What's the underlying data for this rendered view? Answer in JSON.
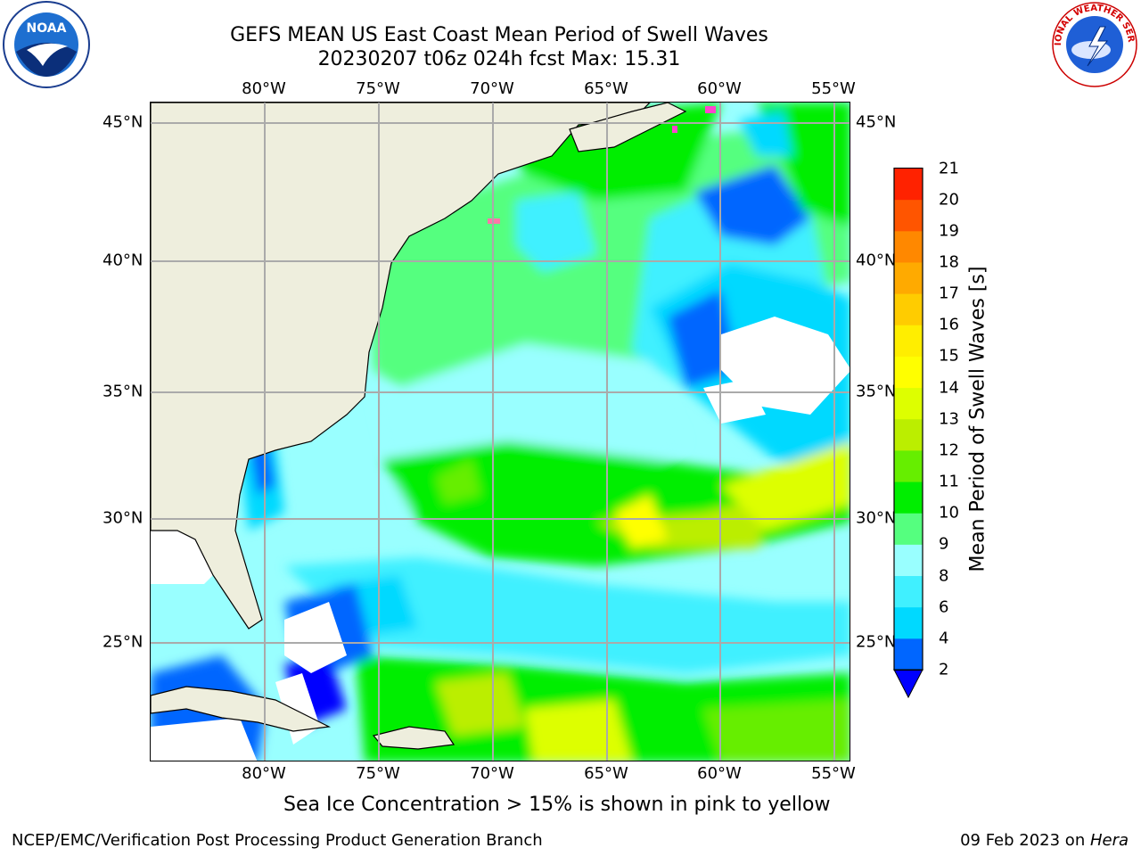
{
  "title": {
    "line1": "GEFS MEAN US East Coast Mean Period of Swell Waves",
    "line2": "20230207 t06z 024h fcst   Max: 15.31"
  },
  "axes": {
    "lon_labels": [
      "80°W",
      "75°W",
      "70°W",
      "65°W",
      "60°W",
      "55°W"
    ],
    "lat_labels": [
      "45°N",
      "40°N",
      "35°N",
      "30°N",
      "25°N"
    ],
    "lon_range": [
      -85,
      -54
    ],
    "lat_range": [
      20,
      46
    ],
    "grid": true
  },
  "colorbar": {
    "label": "Mean Period of Swell Waves [s]",
    "ticks": [
      "2",
      "4",
      "6",
      "8",
      "9",
      "10",
      "11",
      "12",
      "13",
      "14",
      "15",
      "16",
      "17",
      "18",
      "19",
      "20",
      "21"
    ],
    "colors": [
      "#0066ff",
      "#00d9ff",
      "#40f0ff",
      "#99ffff",
      "#55ff7f",
      "#00ee00",
      "#66ee00",
      "#bbee00",
      "#ddff00",
      "#ffff00",
      "#ffee00",
      "#ffcc00",
      "#ffaa00",
      "#ff8800",
      "#ff5500",
      "#ff2200"
    ],
    "under_color": "#0000ff",
    "extend": "min"
  },
  "caption": "Sea Ice Concentration > 15% is shown in pink to yellow",
  "footer": {
    "left": "NCEP/EMC/Verification Post Processing Product Generation Branch",
    "right_date": "09 Feb 2023 on ",
    "right_host": "Hera"
  },
  "logos": {
    "left_icon": "noaa-logo",
    "left_text": "NOAA",
    "right_icon": "nws-logo",
    "right_text": "NATIONAL WEATHER SERVICE"
  },
  "colors": {
    "land": "#eeeedd",
    "grid": "#aaaaaa"
  }
}
